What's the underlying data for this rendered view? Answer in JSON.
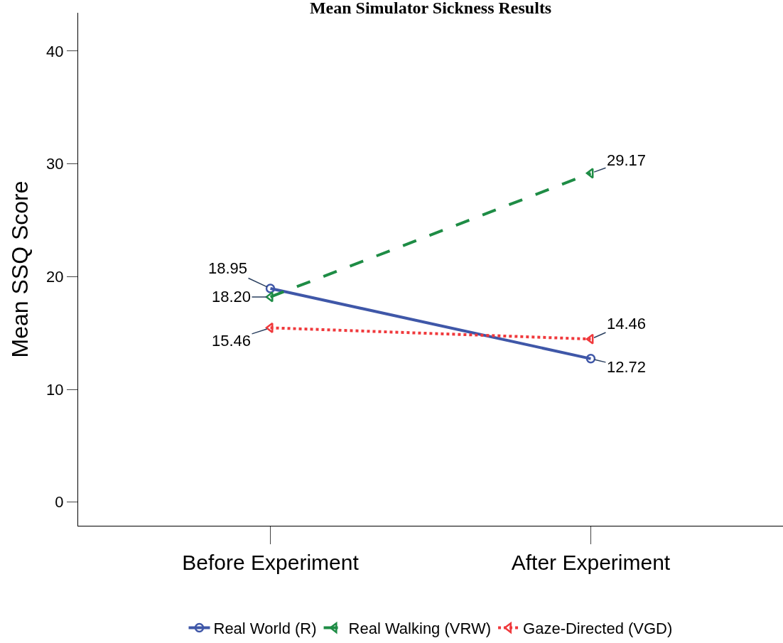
{
  "chart_data": {
    "type": "line",
    "title": "Mean Simulator Sickness Results",
    "ylabel": "Mean SSQ Score",
    "categories": [
      "Before Experiment",
      "After Experiment"
    ],
    "series": [
      {
        "name": "Real World (R)",
        "color": "#3f57a8",
        "values": [
          18.95,
          12.72
        ],
        "value_labels": [
          "18.95",
          "12.72"
        ],
        "marker": "circle",
        "line_style": "solid"
      },
      {
        "name": "Real Walking (VRW)",
        "color": "#1e8c45",
        "values": [
          18.2,
          29.17
        ],
        "value_labels": [
          "18.20",
          "29.17"
        ],
        "marker": "triangle",
        "line_style": "dashed"
      },
      {
        "name": "Gaze-Directed (VGD)",
        "color": "#f0393c",
        "values": [
          15.46,
          14.46
        ],
        "value_labels": [
          "15.46",
          "14.46"
        ],
        "marker": "triangle",
        "line_style": "dotted"
      }
    ],
    "ylim": [
      -2.1,
      43.4
    ],
    "yticks": [
      0,
      10,
      20,
      30,
      40
    ],
    "legend": "bottom"
  }
}
